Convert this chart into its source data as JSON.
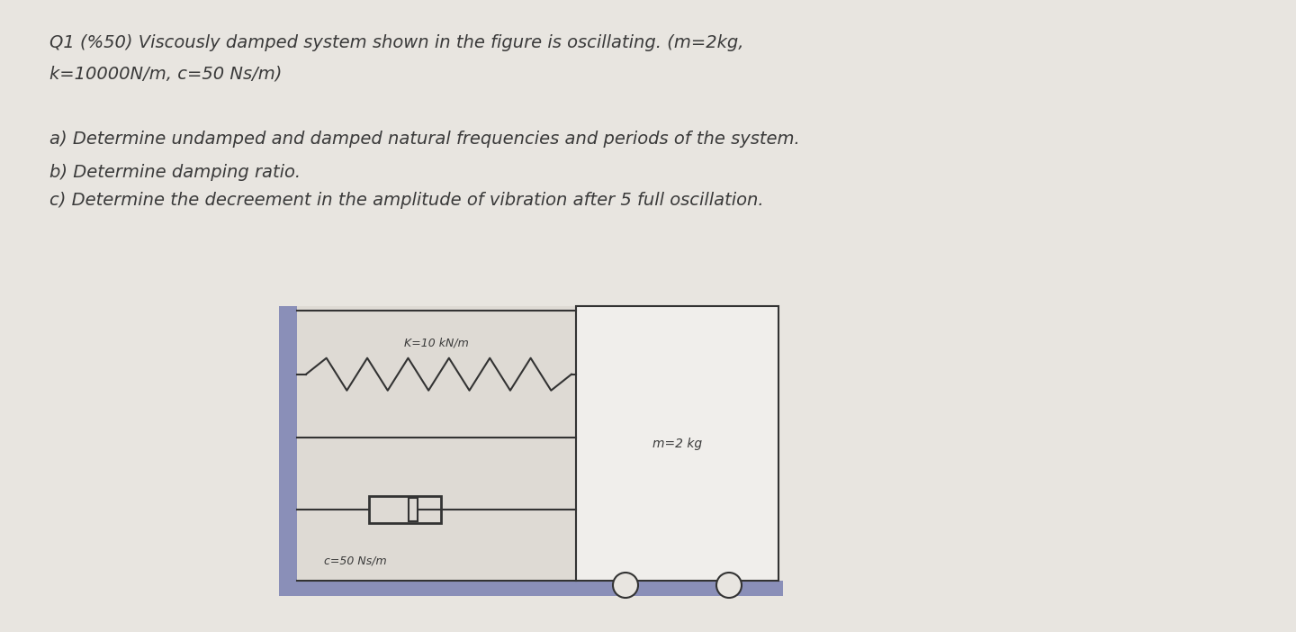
{
  "background_color": "#e8e5e0",
  "text_color": "#3a3a3a",
  "title_line1": "Q1 (%50) Viscously damped system shown in the figure is oscillating. (m=2kg,",
  "title_line2": "k=10000N/m, c=50 Ns/m)",
  "question_a": "a) Determine undamped and damped natural frequencies and periods of the system.",
  "question_b": "b) Determine damping ratio.",
  "question_c": "c) Determine the decreement in the amplitude of vibration after 5 full oscillation.",
  "spring_label": "K=10 kN/m",
  "damper_label": "c=50 Ns/m",
  "mass_label": "m=2 kg",
  "wall_color": "#8a8fb8",
  "diagram_bg": "#dedad4",
  "mass_color": "#f0eeeb",
  "floor_color": "#8a8fb8",
  "line_color": "#333333",
  "title_fontsize": 14,
  "body_fontsize": 14,
  "diagram_fontsize": 9
}
